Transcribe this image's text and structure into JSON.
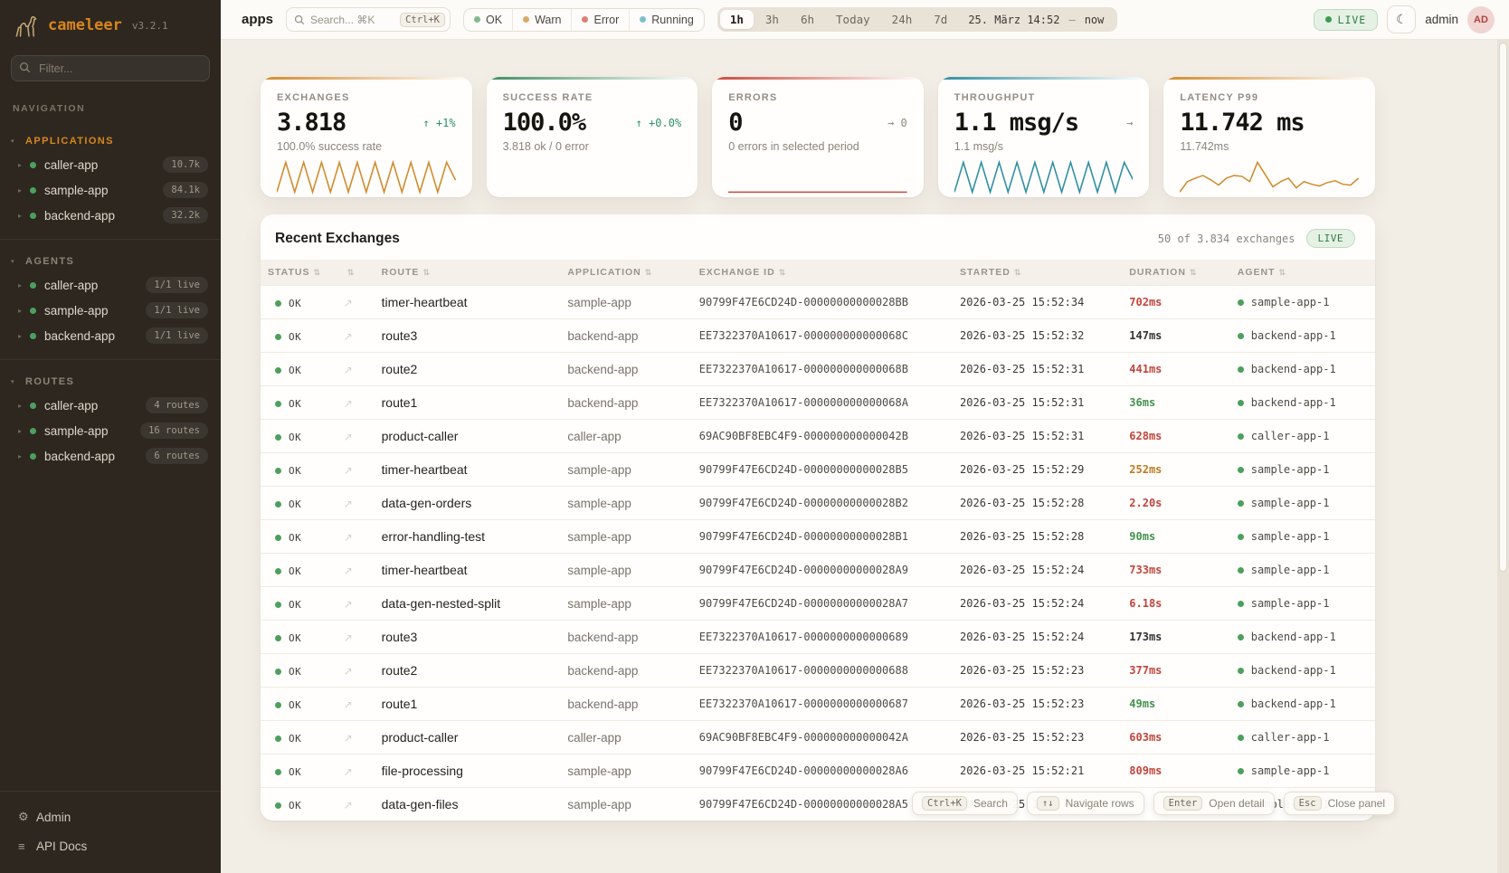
{
  "brand": {
    "name": "cameleer",
    "version": "v3.2.1"
  },
  "sidebar": {
    "filter_placeholder": "Filter...",
    "nav_label": "NAVIGATION",
    "sections": [
      {
        "label": "APPLICATIONS",
        "active": true,
        "items": [
          {
            "name": "caller-app",
            "badge": "10.7k"
          },
          {
            "name": "sample-app",
            "badge": "84.1k"
          },
          {
            "name": "backend-app",
            "badge": "32.2k"
          }
        ]
      },
      {
        "label": "AGENTS",
        "active": false,
        "items": [
          {
            "name": "caller-app",
            "badge": "1/1 live"
          },
          {
            "name": "sample-app",
            "badge": "1/1 live"
          },
          {
            "name": "backend-app",
            "badge": "1/1 live"
          }
        ]
      },
      {
        "label": "ROUTES",
        "active": false,
        "items": [
          {
            "name": "caller-app",
            "badge": "4 routes"
          },
          {
            "name": "sample-app",
            "badge": "16 routes"
          },
          {
            "name": "backend-app",
            "badge": "6 routes"
          }
        ]
      }
    ],
    "footer_items": [
      {
        "label": "Admin",
        "icon": "⚙"
      },
      {
        "label": "API Docs",
        "icon": "≡"
      }
    ]
  },
  "topbar": {
    "title": "apps",
    "search": {
      "placeholder": "Search... ⌘K",
      "shortcut": "Ctrl+K"
    },
    "status_filters": [
      {
        "label": "OK",
        "color": "#84b98b"
      },
      {
        "label": "Warn",
        "color": "#d8aa6b"
      },
      {
        "label": "Error",
        "color": "#dd8078"
      },
      {
        "label": "Running",
        "color": "#7fbecd"
      }
    ],
    "time_ranges": [
      {
        "label": "1h",
        "active": true
      },
      {
        "label": "3h",
        "active": false
      },
      {
        "label": "6h",
        "active": false
      },
      {
        "label": "Today",
        "active": false
      },
      {
        "label": "24h",
        "active": false
      },
      {
        "label": "7d",
        "active": false
      }
    ],
    "date_from": "25. März 14:52",
    "date_sep": "—",
    "date_to": "now",
    "live_label": "LIVE",
    "theme_icon": "☾",
    "user": {
      "name": "admin",
      "initials": "AD"
    }
  },
  "kpis": [
    {
      "label": "EXCHANGES",
      "value": "3.818",
      "delta": "↑ +1%",
      "delta_color": "#2f8f6a",
      "subtitle": "100.0% success rate",
      "accent": "#d08b2c",
      "spark_points": [
        5,
        42,
        5,
        42,
        5,
        42,
        5,
        42,
        5,
        42,
        5,
        42,
        5,
        42,
        5,
        42,
        5,
        42,
        5,
        42,
        20
      ]
    },
    {
      "label": "SUCCESS RATE",
      "value": "100.0%",
      "delta": "↑ +0.0%",
      "delta_color": "#2f8f6a",
      "subtitle": "3.818 ok / 0 error",
      "accent": "#3e8e62",
      "spark_points": []
    },
    {
      "label": "ERRORS",
      "value": "0",
      "delta": "→ 0",
      "delta_color": "#8f897e",
      "subtitle": "0 errors in selected period",
      "accent": "#c9493d",
      "spark_points": [
        0,
        0,
        0
      ]
    },
    {
      "label": "THROUGHPUT",
      "value": "1.1 msg/s",
      "delta": "→",
      "delta_color": "#8f897e",
      "subtitle": "1.1 msg/s",
      "accent": "#2e8fa0",
      "spark_points": [
        5,
        42,
        5,
        42,
        5,
        42,
        5,
        42,
        5,
        42,
        5,
        42,
        5,
        42,
        5,
        42,
        5,
        42,
        5,
        42,
        20
      ]
    },
    {
      "label": "LATENCY P99",
      "value": "11.742 ms",
      "delta": "",
      "delta_color": "#8f897e",
      "subtitle": "11.742ms",
      "accent": "#d08b2c",
      "spark_points": [
        8,
        20,
        24,
        27,
        22,
        16,
        24,
        27,
        26,
        20,
        42,
        28,
        14,
        20,
        24,
        13,
        20,
        17,
        15,
        19,
        21,
        17,
        16,
        24
      ]
    }
  ],
  "table": {
    "title": "Recent Exchanges",
    "summary": "50 of 3.834 exchanges",
    "live_label": "LIVE",
    "columns": [
      {
        "label": "STATUS"
      },
      {
        "label": ""
      },
      {
        "label": "ROUTE"
      },
      {
        "label": "APPLICATION"
      },
      {
        "label": "EXCHANGE ID"
      },
      {
        "label": "STARTED"
      },
      {
        "label": "DURATION"
      },
      {
        "label": "AGENT"
      }
    ],
    "open_icon": "↗",
    "rows": [
      {
        "status": "OK",
        "route": "timer-heartbeat",
        "application": "sample-app",
        "exchange_id": "90799F47E6CD24D-00000000000028BB",
        "started": "2026-03-25 15:52:34",
        "duration": "702ms",
        "duration_color": "#c2453b",
        "agent": "sample-app-1"
      },
      {
        "status": "OK",
        "route": "route3",
        "application": "backend-app",
        "exchange_id": "EE7322370A10617-000000000000068C",
        "started": "2026-03-25 15:52:32",
        "duration": "147ms",
        "duration_color": "#37332d",
        "agent": "backend-app-1"
      },
      {
        "status": "OK",
        "route": "route2",
        "application": "backend-app",
        "exchange_id": "EE7322370A10617-000000000000068B",
        "started": "2026-03-25 15:52:31",
        "duration": "441ms",
        "duration_color": "#c2453b",
        "agent": "backend-app-1"
      },
      {
        "status": "OK",
        "route": "route1",
        "application": "backend-app",
        "exchange_id": "EE7322370A10617-000000000000068A",
        "started": "2026-03-25 15:52:31",
        "duration": "36ms",
        "duration_color": "#44914f",
        "agent": "backend-app-1"
      },
      {
        "status": "OK",
        "route": "product-caller",
        "application": "caller-app",
        "exchange_id": "69AC90BF8EBC4F9-000000000000042B",
        "started": "2026-03-25 15:52:31",
        "duration": "628ms",
        "duration_color": "#c2453b",
        "agent": "caller-app-1"
      },
      {
        "status": "OK",
        "route": "timer-heartbeat",
        "application": "sample-app",
        "exchange_id": "90799F47E6CD24D-00000000000028B5",
        "started": "2026-03-25 15:52:29",
        "duration": "252ms",
        "duration_color": "#bc7c21",
        "agent": "sample-app-1"
      },
      {
        "status": "OK",
        "route": "data-gen-orders",
        "application": "sample-app",
        "exchange_id": "90799F47E6CD24D-00000000000028B2",
        "started": "2026-03-25 15:52:28",
        "duration": "2.20s",
        "duration_color": "#c2453b",
        "agent": "sample-app-1"
      },
      {
        "status": "OK",
        "route": "error-handling-test",
        "application": "sample-app",
        "exchange_id": "90799F47E6CD24D-00000000000028B1",
        "started": "2026-03-25 15:52:28",
        "duration": "90ms",
        "duration_color": "#44914f",
        "agent": "sample-app-1"
      },
      {
        "status": "OK",
        "route": "timer-heartbeat",
        "application": "sample-app",
        "exchange_id": "90799F47E6CD24D-00000000000028A9",
        "started": "2026-03-25 15:52:24",
        "duration": "733ms",
        "duration_color": "#c2453b",
        "agent": "sample-app-1"
      },
      {
        "status": "OK",
        "route": "data-gen-nested-split",
        "application": "sample-app",
        "exchange_id": "90799F47E6CD24D-00000000000028A7",
        "started": "2026-03-25 15:52:24",
        "duration": "6.18s",
        "duration_color": "#c2453b",
        "agent": "sample-app-1"
      },
      {
        "status": "OK",
        "route": "route3",
        "application": "backend-app",
        "exchange_id": "EE7322370A10617-0000000000000689",
        "started": "2026-03-25 15:52:24",
        "duration": "173ms",
        "duration_color": "#37332d",
        "agent": "backend-app-1"
      },
      {
        "status": "OK",
        "route": "route2",
        "application": "backend-app",
        "exchange_id": "EE7322370A10617-0000000000000688",
        "started": "2026-03-25 15:52:23",
        "duration": "377ms",
        "duration_color": "#c2453b",
        "agent": "backend-app-1"
      },
      {
        "status": "OK",
        "route": "route1",
        "application": "backend-app",
        "exchange_id": "EE7322370A10617-0000000000000687",
        "started": "2026-03-25 15:52:23",
        "duration": "49ms",
        "duration_color": "#44914f",
        "agent": "backend-app-1"
      },
      {
        "status": "OK",
        "route": "product-caller",
        "application": "caller-app",
        "exchange_id": "69AC90BF8EBC4F9-000000000000042A",
        "started": "2026-03-25 15:52:23",
        "duration": "603ms",
        "duration_color": "#c2453b",
        "agent": "caller-app-1"
      },
      {
        "status": "OK",
        "route": "file-processing",
        "application": "sample-app",
        "exchange_id": "90799F47E6CD24D-00000000000028A6",
        "started": "2026-03-25 15:52:21",
        "duration": "809ms",
        "duration_color": "#c2453b",
        "agent": "sample-app-1"
      },
      {
        "status": "OK",
        "route": "data-gen-files",
        "application": "sample-app",
        "exchange_id": "90799F47E6CD24D-00000000000028A5",
        "started": "2026-03-25 1",
        "duration": "",
        "duration_color": "#37332d",
        "agent": "sample-app-1"
      }
    ]
  },
  "shortcuts": [
    {
      "key": "Ctrl+K",
      "label": "Search"
    },
    {
      "key": "↑↓",
      "label": "Navigate rows"
    },
    {
      "key": "Enter",
      "label": "Open detail"
    },
    {
      "key": "Esc",
      "label": "Close panel"
    }
  ]
}
